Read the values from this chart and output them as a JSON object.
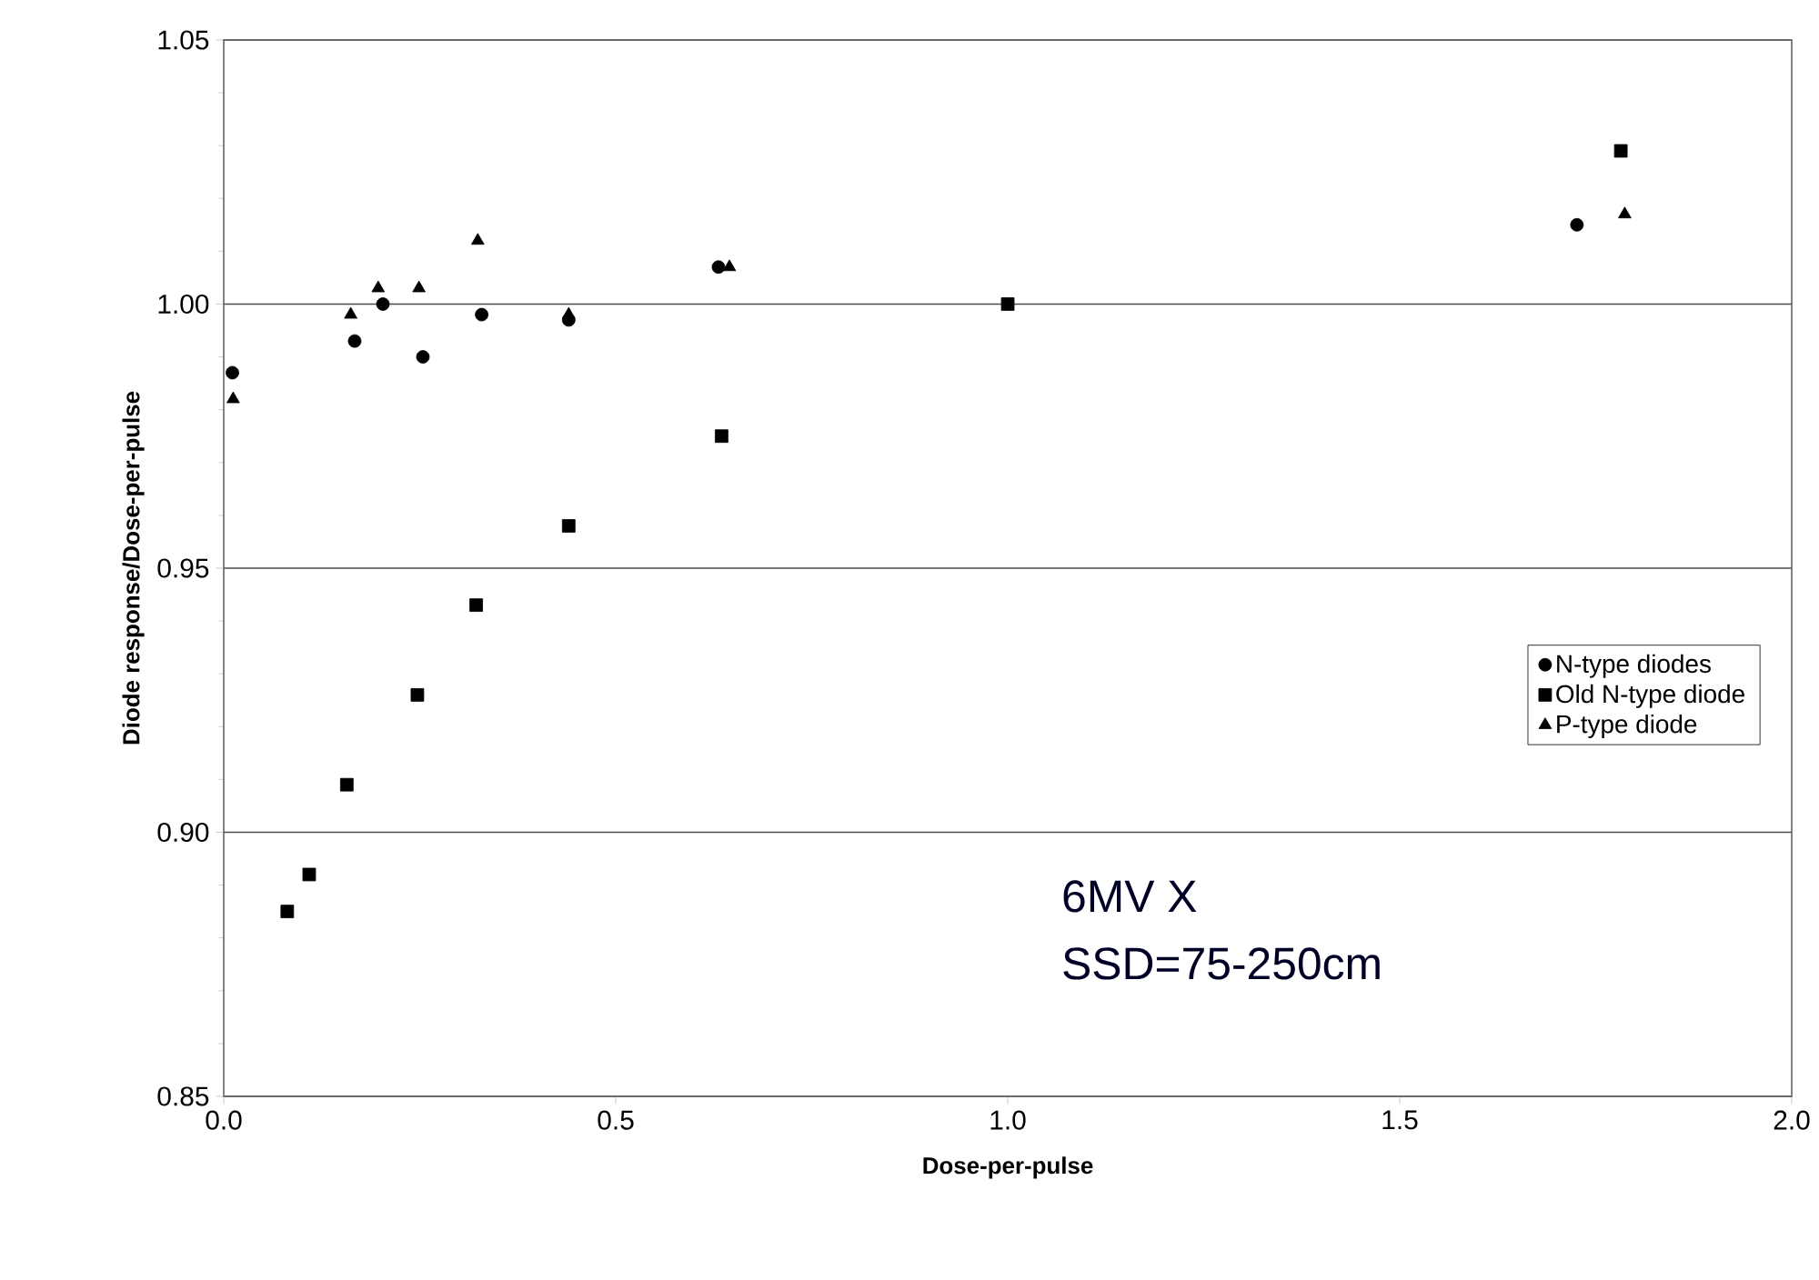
{
  "chart_data": {
    "type": "scatter",
    "xlabel": "Dose-per-pulse",
    "ylabel": "Diode response/Dose-per-pulse",
    "xlim": [
      0,
      2
    ],
    "xticks": [
      {
        "value": 0,
        "label": "0.0"
      },
      {
        "value": 0.5,
        "label": "0.5"
      },
      {
        "value": 1,
        "label": "1.0"
      },
      {
        "value": 1.5,
        "label": "1.5"
      },
      {
        "value": 2,
        "label": "2.0"
      }
    ],
    "ylim": [
      0.85,
      1.05
    ],
    "yticks": [
      {
        "value": 0.85,
        "label": "0.85"
      },
      {
        "value": 0.9,
        "label": "0.90"
      },
      {
        "value": 0.95,
        "label": "0.95"
      },
      {
        "value": 1,
        "label": "1.00"
      },
      {
        "value": 1.05,
        "label": "1.05"
      }
    ],
    "grid": "y",
    "legend": "right",
    "series": [
      {
        "name": "N-type diodes",
        "color": "#000000",
        "marker": "circle",
        "x": [
          0.011,
          0.167,
          0.203,
          0.254,
          0.329,
          0.44,
          0.631,
          1.726
        ],
        "values": [
          0.987,
          0.993,
          1.0,
          0.99,
          0.998,
          0.997,
          1.007,
          1.015
        ]
      },
      {
        "name": "Old N-type diode",
        "color": "#000000",
        "marker": "square",
        "x": [
          0.081,
          0.109,
          0.157,
          0.247,
          0.322,
          0.44,
          0.635,
          1.0,
          1.782
        ],
        "values": [
          0.885,
          0.892,
          0.909,
          0.926,
          0.943,
          0.958,
          0.975,
          1.0,
          1.029
        ]
      },
      {
        "name": "P-type diode",
        "color": "#000000",
        "marker": "triangle",
        "x": [
          0.012,
          0.162,
          0.197,
          0.249,
          0.324,
          0.44,
          0.645,
          1.787
        ],
        "values": [
          0.982,
          0.998,
          1.003,
          1.003,
          1.012,
          0.998,
          1.007,
          1.017
        ]
      }
    ],
    "annotations": [
      "6MV X",
      "SSD=75-250cm"
    ]
  }
}
